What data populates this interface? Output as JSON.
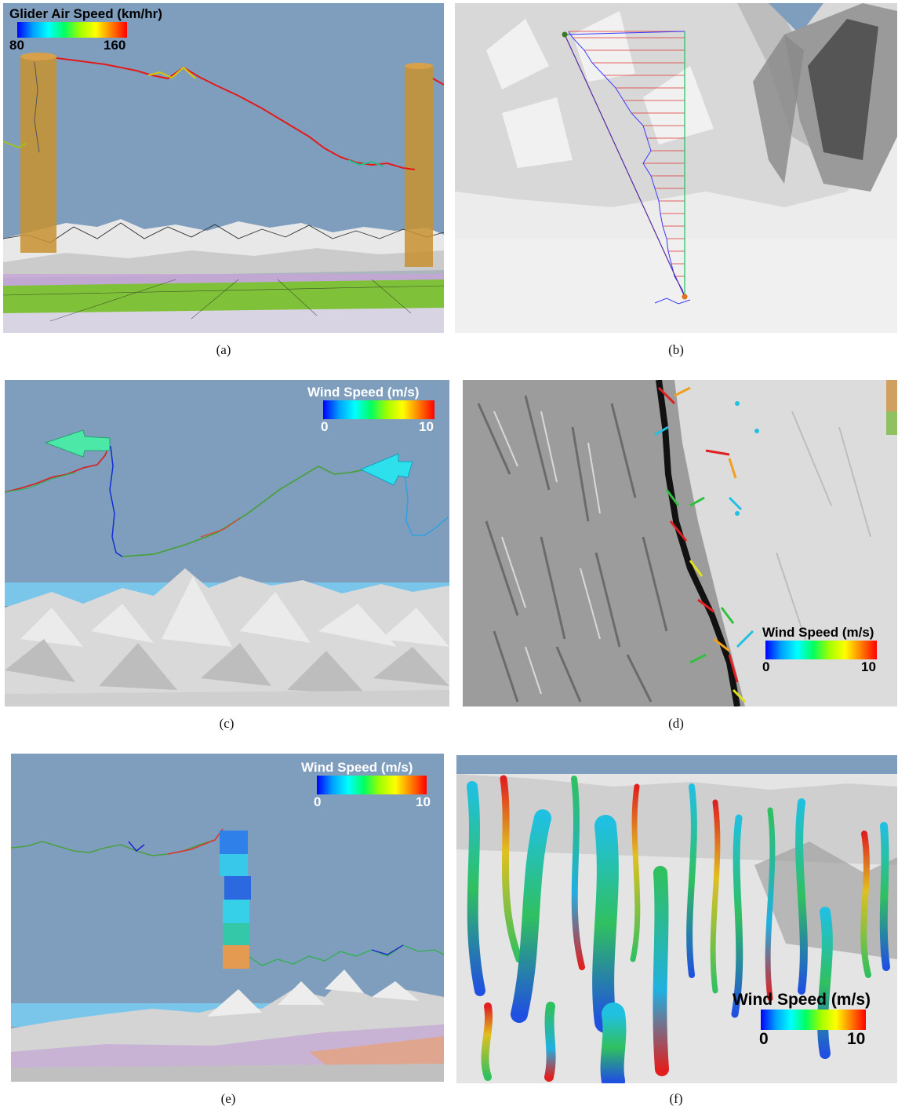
{
  "panels": {
    "a": {
      "caption": "(a)",
      "legend": {
        "title": "Glider Air Speed (km/hr)",
        "min": "80",
        "max": "160"
      }
    },
    "b": {
      "caption": "(b)"
    },
    "c": {
      "caption": "(c)",
      "legend": {
        "title": "Wind Speed (m/s)",
        "min": "0",
        "max": "10"
      }
    },
    "d": {
      "caption": "(d)",
      "legend": {
        "title": "Wind Speed (m/s)",
        "min": "0",
        "max": "10"
      }
    },
    "e": {
      "caption": "(e)",
      "legend": {
        "title": "Wind Speed  (m/s)",
        "min": "0",
        "max": "10"
      }
    },
    "f": {
      "caption": "(f)",
      "legend": {
        "title": "Wind Speed (m/s)",
        "min": "0",
        "max": "10"
      }
    }
  },
  "colors": {
    "sky": "#7f9ebe",
    "terrain": "#e6e6e6",
    "ramp_low": "#0000ff",
    "ramp_high": "#ff0000"
  }
}
